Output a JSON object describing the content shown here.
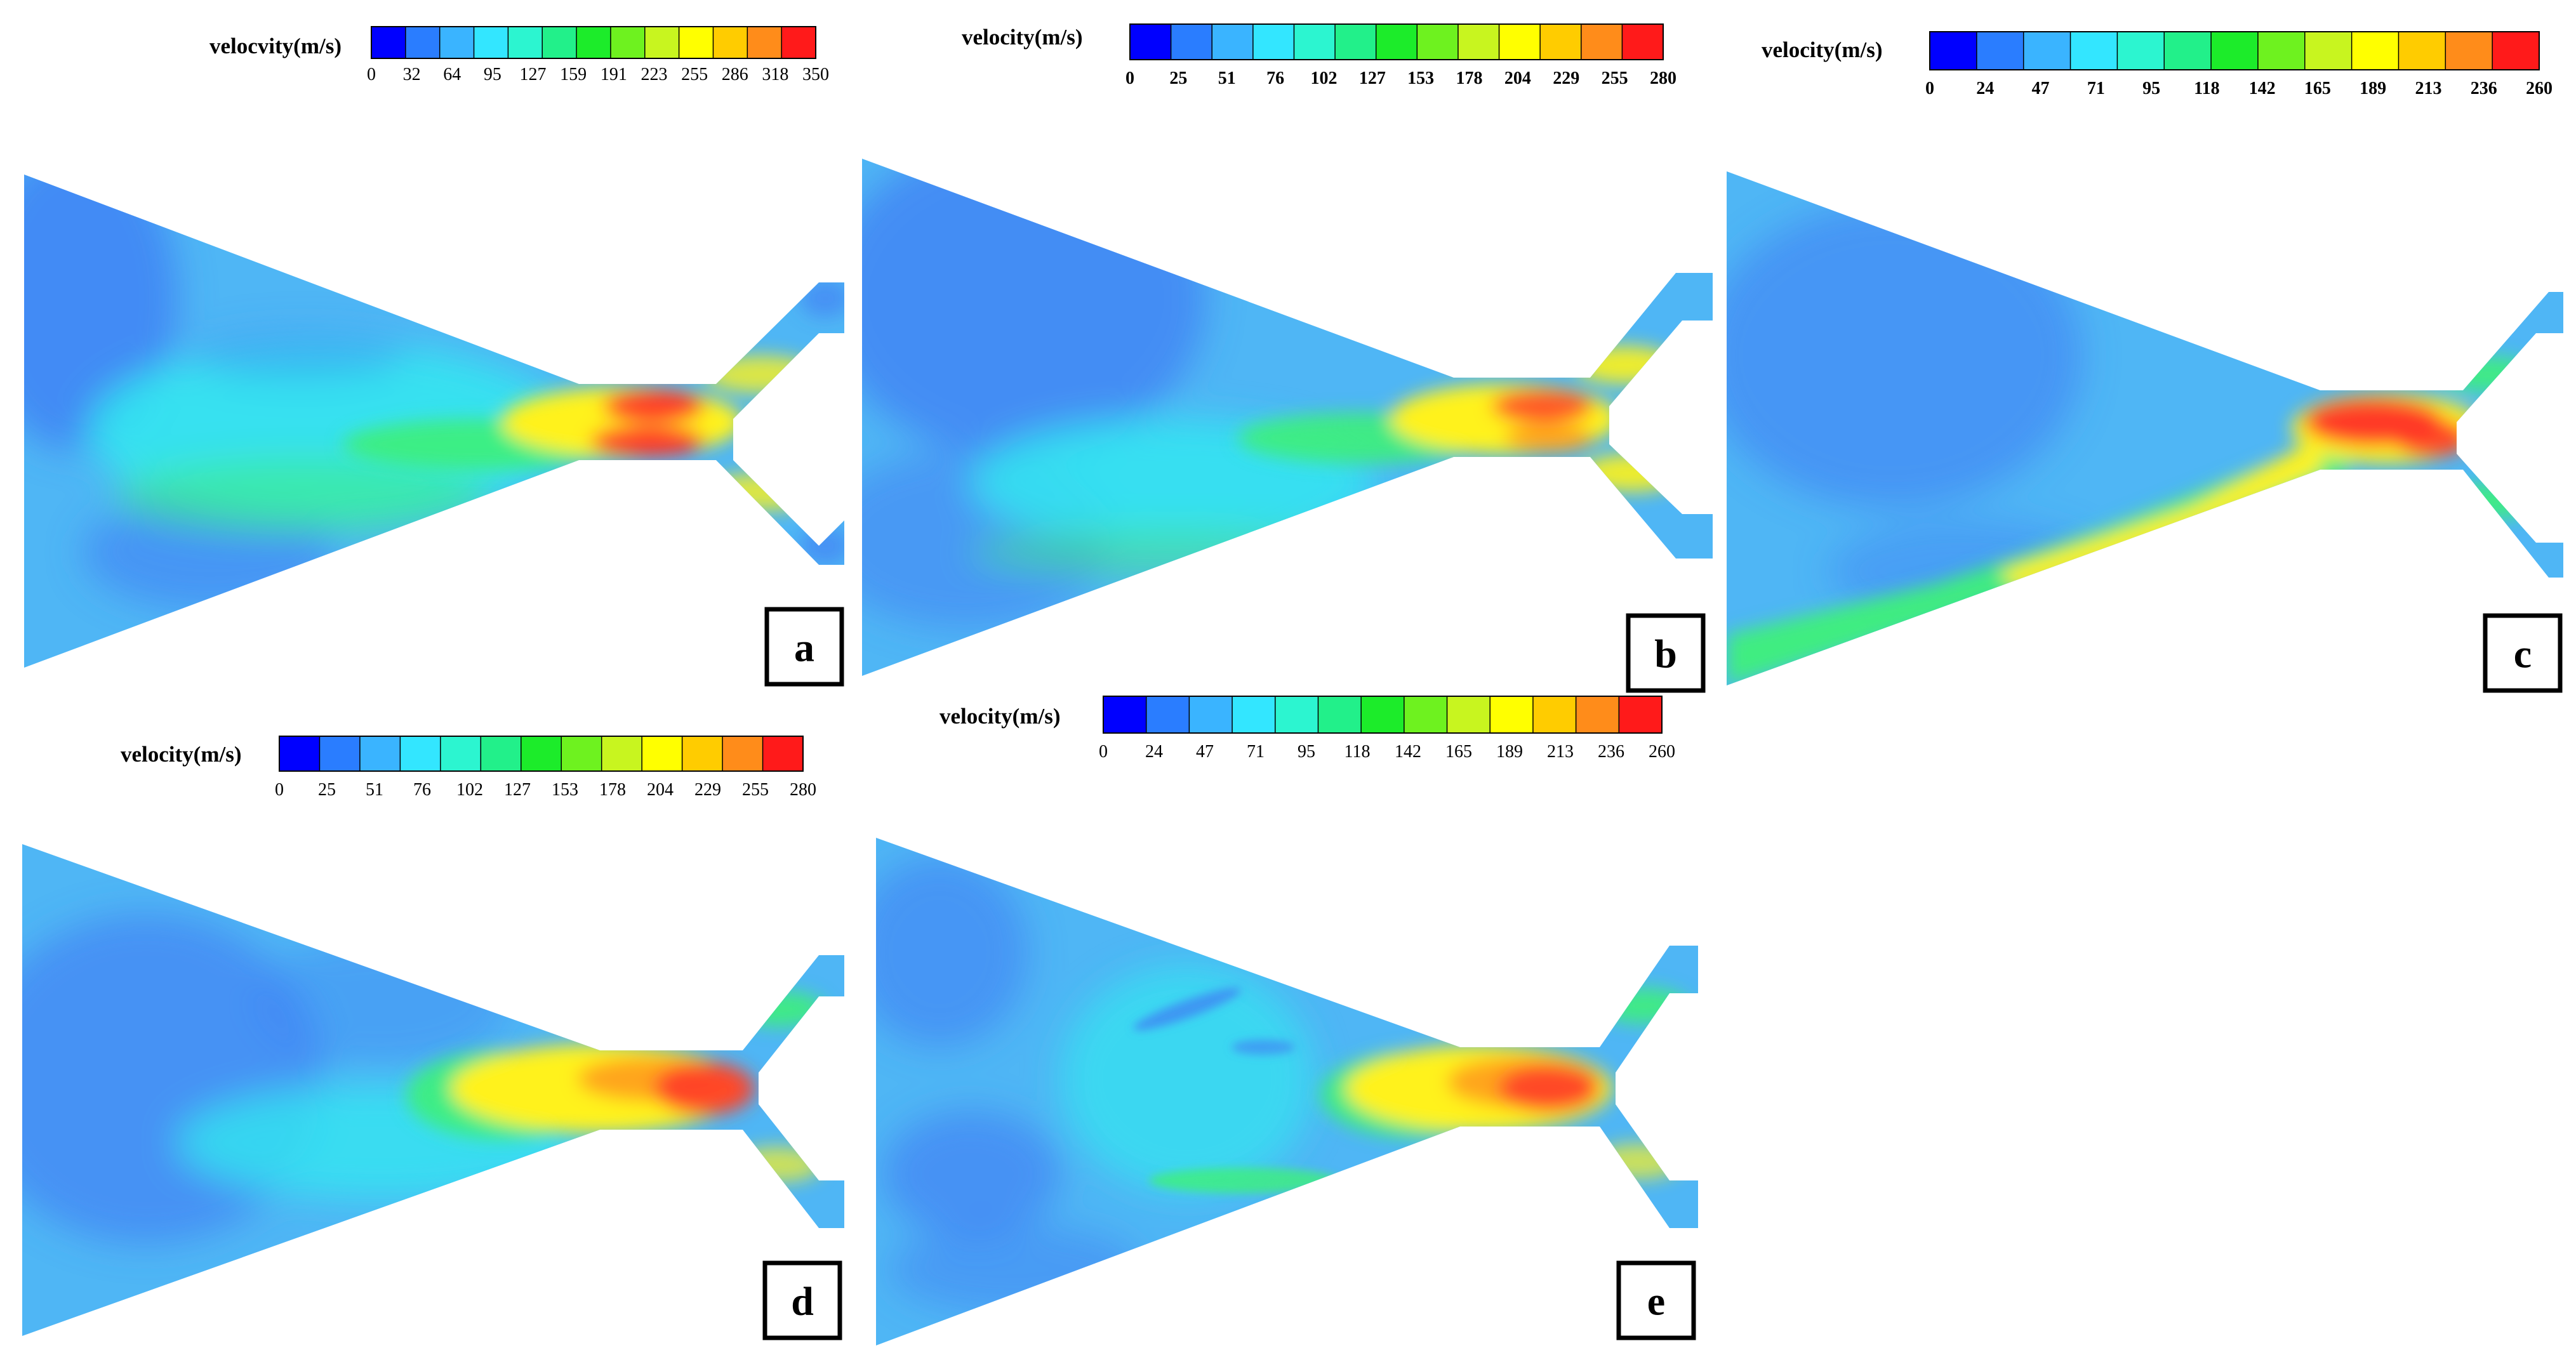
{
  "colormap": [
    "#0000ff",
    "#2a7dff",
    "#3ab4ff",
    "#33e6ff",
    "#2cf5d0",
    "#22f08a",
    "#1cec2a",
    "#6ef21f",
    "#c8f51f",
    "#ffff00",
    "#ffcc00",
    "#ff8c1a",
    "#ff1a1a"
  ],
  "field_colors": {
    "low": "#3f7cf4",
    "mid_low": "#4fb6f5",
    "mid": "#33e6f0",
    "green": "#3ff07a",
    "yellow": "#fff21a",
    "orange": "#ffa51f",
    "red": "#ff3a28"
  },
  "panels": [
    {
      "id": "a",
      "label": "a",
      "colorbar_title": "velocvity(m/s)",
      "tick_style": "normal",
      "ticks": [
        "0",
        "32",
        "64",
        "95",
        "127",
        "159",
        "191",
        "223",
        "255",
        "286",
        "318",
        "350"
      ]
    },
    {
      "id": "b",
      "label": "b",
      "colorbar_title": "velocity(m/s)",
      "tick_style": "bold",
      "ticks": [
        "0",
        "25",
        "51",
        "76",
        "102",
        "127",
        "153",
        "178",
        "204",
        "229",
        "255",
        "280"
      ]
    },
    {
      "id": "c",
      "label": "c",
      "colorbar_title": "velocity(m/s)",
      "tick_style": "bold",
      "ticks": [
        "0",
        "24",
        "47",
        "71",
        "95",
        "118",
        "142",
        "165",
        "189",
        "213",
        "236",
        "260"
      ]
    },
    {
      "id": "d",
      "label": "d",
      "colorbar_title": "velocity(m/s)",
      "tick_style": "normal",
      "ticks": [
        "0",
        "25",
        "51",
        "76",
        "102",
        "127",
        "153",
        "178",
        "204",
        "229",
        "255",
        "280"
      ]
    },
    {
      "id": "e",
      "label": "e",
      "colorbar_title": "velocity(m/s)",
      "tick_style": "normal",
      "ticks": [
        "0",
        "24",
        "47",
        "71",
        "95",
        "118",
        "142",
        "165",
        "189",
        "213",
        "236",
        "260"
      ]
    }
  ]
}
